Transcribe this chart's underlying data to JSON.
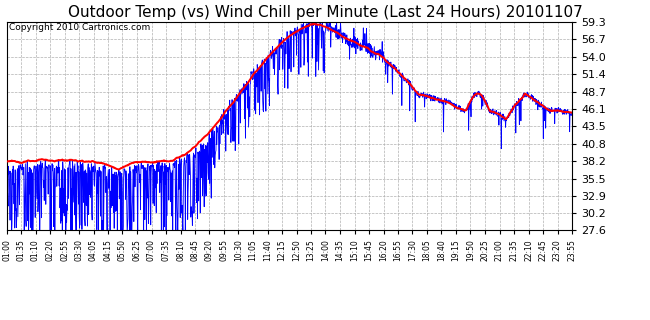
{
  "title": "Outdoor Temp (vs) Wind Chill per Minute (Last 24 Hours) 20101107",
  "copyright": "Copyright 2010 Cartronics.com",
  "yticks": [
    27.6,
    30.2,
    32.9,
    35.5,
    38.2,
    40.8,
    43.5,
    46.1,
    48.7,
    51.4,
    54.0,
    56.7,
    59.3
  ],
  "ylim": [
    27.6,
    59.3
  ],
  "xtick_labels": [
    "01:00",
    "01:35",
    "01:10",
    "02:20",
    "02:55",
    "03:30",
    "04:05",
    "04:15",
    "05:50",
    "06:25",
    "07:00",
    "07:35",
    "08:10",
    "08:45",
    "09:20",
    "09:55",
    "10:30",
    "11:05",
    "11:40",
    "12:15",
    "12:50",
    "13:25",
    "14:00",
    "14:35",
    "15:10",
    "15:45",
    "16:20",
    "16:55",
    "17:30",
    "18:05",
    "18:40",
    "19:15",
    "19:50",
    "20:25",
    "21:00",
    "21:35",
    "22:10",
    "22:45",
    "23:20",
    "23:55"
  ],
  "blue_color": "#0000ff",
  "red_color": "#ff0000",
  "bg_color": "#ffffff",
  "grid_color": "#b0b0b0",
  "title_fontsize": 11,
  "copyright_fontsize": 6.5,
  "ytick_fontsize": 8,
  "xtick_fontsize": 5.5
}
